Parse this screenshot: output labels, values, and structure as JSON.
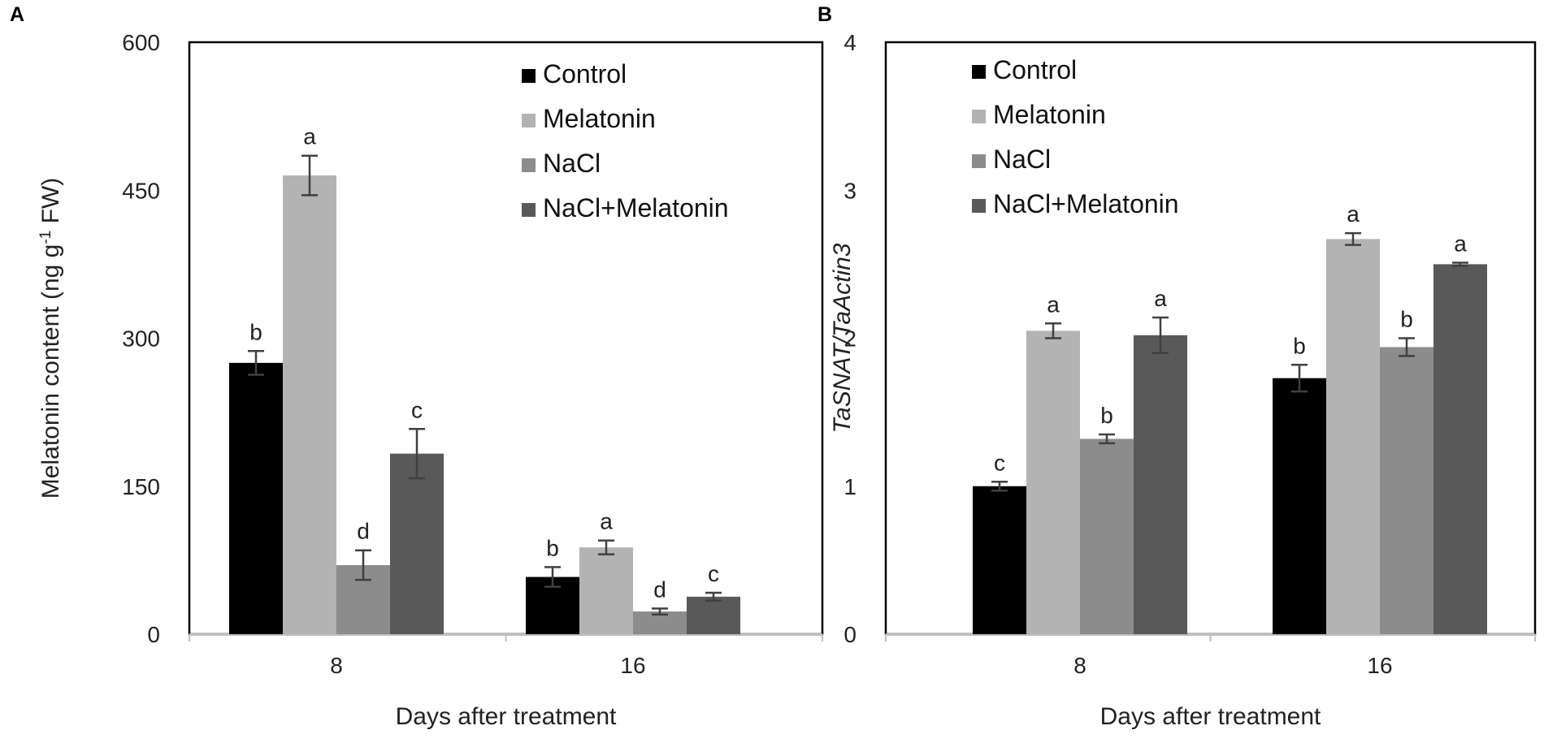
{
  "colors": {
    "Control": "#000000",
    "Melatonin": "#b3b3b3",
    "NaCl": "#8c8c8c",
    "NaCl+Melatonin": "#595959",
    "axis": "#000000",
    "error_bar": "#404040"
  },
  "chart_data": [
    {
      "panel": "A",
      "type": "bar",
      "categories": [
        "8",
        "16"
      ],
      "series": [
        {
          "name": "Control",
          "values": [
            275,
            58
          ],
          "errors": [
            12,
            10
          ],
          "letters": [
            "b",
            "b"
          ]
        },
        {
          "name": "Melatonin",
          "values": [
            465,
            88
          ],
          "errors": [
            20,
            7
          ],
          "letters": [
            "a",
            "a"
          ]
        },
        {
          "name": "NaCl",
          "values": [
            70,
            23
          ],
          "errors": [
            15,
            3
          ],
          "letters": [
            "d",
            "d"
          ]
        },
        {
          "name": "NaCl+Melatonin",
          "values": [
            183,
            38
          ],
          "errors": [
            25,
            4
          ],
          "letters": [
            "c",
            "c"
          ]
        }
      ],
      "title": "",
      "xlabel": "Days after treatment",
      "ylabel_main": "Melatonin content (ng g",
      "ylabel_sup": "-1",
      "ylabel_end": " FW)",
      "ylim": [
        0,
        600
      ],
      "yticks": [
        0,
        150,
        300,
        450,
        600
      ],
      "ytick_labels": [
        "0",
        "150",
        "300",
        "450",
        "600"
      ],
      "legend": "top-right",
      "grid": false
    },
    {
      "panel": "B",
      "type": "bar",
      "categories": [
        "8",
        "16"
      ],
      "series": [
        {
          "name": "Control",
          "values": [
            1.0,
            1.73
          ],
          "errors": [
            0.03,
            0.09
          ],
          "letters": [
            "c",
            "b"
          ]
        },
        {
          "name": "Melatonin",
          "values": [
            2.05,
            2.67
          ],
          "errors": [
            0.05,
            0.04
          ],
          "letters": [
            "a",
            "a"
          ]
        },
        {
          "name": "NaCl",
          "values": [
            1.32,
            1.94
          ],
          "errors": [
            0.03,
            0.06
          ],
          "letters": [
            "b",
            "b"
          ]
        },
        {
          "name": "NaCl+Melatonin",
          "values": [
            2.02,
            2.5
          ],
          "errors": [
            0.12,
            0.01
          ],
          "letters": [
            "a",
            "a"
          ]
        }
      ],
      "title": "",
      "xlabel": "Days after treatment",
      "ylabel": "TaSNAT/TaActin3",
      "ylim": [
        0,
        4
      ],
      "yticks": [
        0,
        1,
        2,
        3,
        4
      ],
      "ytick_labels": [
        "0",
        "1",
        "2",
        "3",
        "4"
      ],
      "legend": "top-left",
      "grid": false
    }
  ]
}
